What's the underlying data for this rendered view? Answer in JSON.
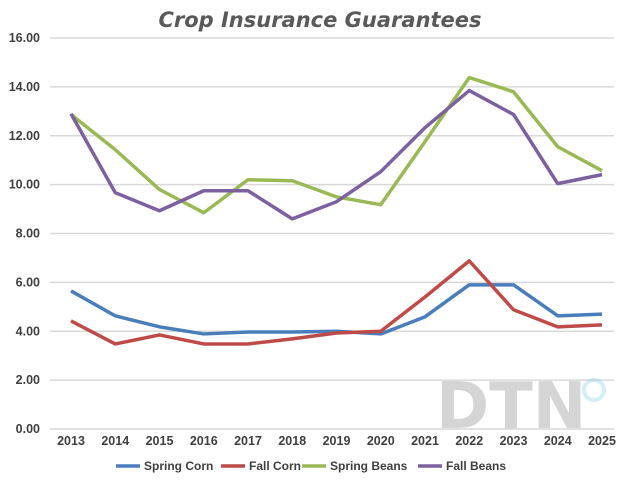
{
  "chart_data": {
    "type": "line",
    "title": "Crop Insurance Guarantees",
    "xlabel": "",
    "ylabel": "",
    "x": [
      "2013",
      "2014",
      "2015",
      "2016",
      "2017",
      "2018",
      "2019",
      "2020",
      "2021",
      "2022",
      "2023",
      "2024",
      "2025"
    ],
    "ylim": [
      0,
      16
    ],
    "yticks": [
      "0.00",
      "2.00",
      "4.00",
      "6.00",
      "8.00",
      "10.00",
      "12.00",
      "14.00",
      "16.00"
    ],
    "grid": true,
    "legend_position": "bottom",
    "series": [
      {
        "name": "Spring Corn",
        "color": "#4a7ebb",
        "values": [
          5.65,
          4.63,
          4.18,
          3.89,
          3.97,
          3.97,
          4.0,
          3.89,
          4.59,
          5.9,
          5.9,
          4.63,
          4.7
        ]
      },
      {
        "name": "Fall Corn",
        "color": "#be4b48",
        "values": [
          4.42,
          3.48,
          3.85,
          3.48,
          3.48,
          3.69,
          3.93,
          4.0,
          5.4,
          6.88,
          4.88,
          4.18,
          4.26
        ]
      },
      {
        "name": "Spring Beans",
        "color": "#98b954",
        "values": [
          12.87,
          11.43,
          9.8,
          8.85,
          10.2,
          10.16,
          9.5,
          9.18,
          11.76,
          14.38,
          13.8,
          11.55,
          10.57
        ]
      },
      {
        "name": "Fall Beans",
        "color": "#7d60a0",
        "values": [
          12.9,
          9.67,
          8.93,
          9.75,
          9.75,
          8.6,
          9.3,
          10.53,
          12.33,
          13.85,
          12.87,
          10.04,
          10.41
        ]
      }
    ]
  },
  "watermark": "DTN"
}
